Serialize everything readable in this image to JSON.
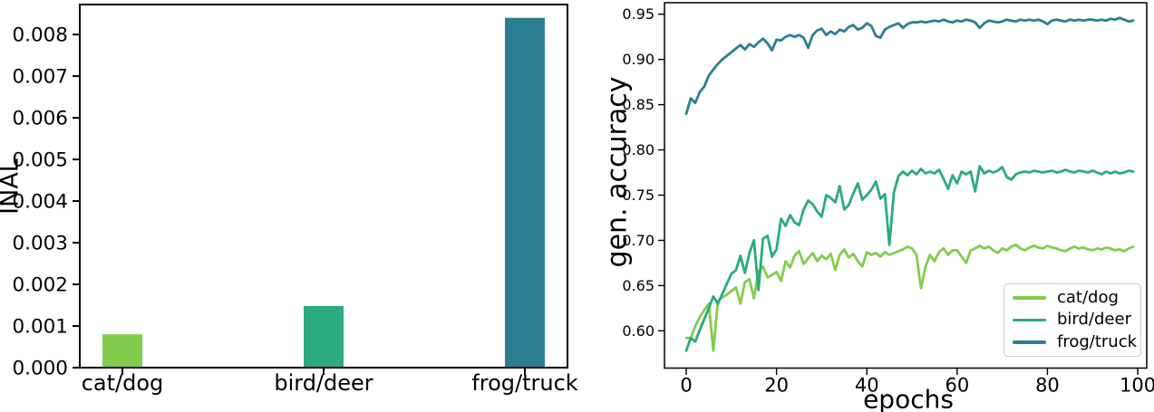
{
  "chart_data": [
    {
      "type": "bar",
      "title": "",
      "xlabel": "",
      "ylabel": "INAL",
      "categories": [
        "cat/dog",
        "bird/deer",
        "frog/truck"
      ],
      "values": [
        0.0008,
        0.00148,
        0.0084
      ],
      "colors": [
        "#82cc4e",
        "#2baa80",
        "#2b7f8e"
      ],
      "yticks": [
        "0.000",
        "0.001",
        "0.002",
        "0.003",
        "0.004",
        "0.005",
        "0.006",
        "0.007",
        "0.008"
      ],
      "ylim": [
        0,
        0.00872
      ],
      "grid": false
    },
    {
      "type": "line",
      "title": "",
      "xlabel": "epochs",
      "ylabel": "gen. accuracy",
      "xticks": [
        "0",
        "20",
        "40",
        "60",
        "80",
        "100"
      ],
      "xtick_values": [
        0,
        20,
        40,
        60,
        80,
        100
      ],
      "yticks": [
        "0.60",
        "0.65",
        "0.70",
        "0.75",
        "0.80",
        "0.85",
        "0.90",
        "0.95"
      ],
      "ytick_values": [
        0.6,
        0.65,
        0.7,
        0.75,
        0.8,
        0.85,
        0.9,
        0.95
      ],
      "xlim": [
        -4.82,
        102.0
      ],
      "ylim": [
        0.5588,
        0.9627
      ],
      "grid": false,
      "legend_position": "lower right",
      "series": [
        {
          "name": "cat/dog",
          "color": "#82cc4e",
          "x_start": 0,
          "x_step": 1,
          "values": [
            0.592,
            0.592,
            0.605,
            0.615,
            0.623,
            0.63,
            0.578,
            0.633,
            0.637,
            0.64,
            0.644,
            0.648,
            0.63,
            0.654,
            0.657,
            0.636,
            0.666,
            0.671,
            0.659,
            0.662,
            0.665,
            0.655,
            0.677,
            0.67,
            0.683,
            0.688,
            0.674,
            0.68,
            0.686,
            0.677,
            0.683,
            0.679,
            0.685,
            0.667,
            0.684,
            0.69,
            0.681,
            0.685,
            0.677,
            0.671,
            0.687,
            0.684,
            0.686,
            0.682,
            0.687,
            0.684,
            0.686,
            0.688,
            0.69,
            0.693,
            0.691,
            0.684,
            0.647,
            0.671,
            0.684,
            0.677,
            0.687,
            0.691,
            0.684,
            0.689,
            0.689,
            0.682,
            0.675,
            0.689,
            0.691,
            0.694,
            0.691,
            0.693,
            0.689,
            0.686,
            0.691,
            0.689,
            0.693,
            0.695,
            0.691,
            0.689,
            0.692,
            0.694,
            0.692,
            0.691,
            0.694,
            0.692,
            0.691,
            0.689,
            0.688,
            0.691,
            0.693,
            0.691,
            0.692,
            0.69,
            0.689,
            0.691,
            0.69,
            0.692,
            0.691,
            0.689,
            0.69,
            0.688,
            0.691,
            0.693
          ]
        },
        {
          "name": "bird/deer",
          "color": "#2baa80",
          "x_start": 0,
          "x_step": 1,
          "values": [
            0.578,
            0.592,
            0.588,
            0.601,
            0.613,
            0.625,
            0.638,
            0.63,
            0.641,
            0.652,
            0.663,
            0.667,
            0.683,
            0.664,
            0.686,
            0.7,
            0.645,
            0.702,
            0.705,
            0.682,
            0.69,
            0.724,
            0.716,
            0.728,
            0.72,
            0.717,
            0.734,
            0.744,
            0.74,
            0.732,
            0.726,
            0.75,
            0.747,
            0.742,
            0.76,
            0.734,
            0.739,
            0.752,
            0.763,
            0.745,
            0.75,
            0.756,
            0.765,
            0.746,
            0.751,
            0.695,
            0.753,
            0.771,
            0.776,
            0.772,
            0.777,
            0.773,
            0.779,
            0.774,
            0.776,
            0.774,
            0.778,
            0.768,
            0.757,
            0.772,
            0.763,
            0.776,
            0.773,
            0.776,
            0.754,
            0.782,
            0.774,
            0.777,
            0.775,
            0.777,
            0.781,
            0.77,
            0.767,
            0.773,
            0.775,
            0.776,
            0.775,
            0.777,
            0.776,
            0.775,
            0.776,
            0.777,
            0.775,
            0.776,
            0.778,
            0.776,
            0.775,
            0.777,
            0.776,
            0.775,
            0.777,
            0.775,
            0.773,
            0.776,
            0.774,
            0.776,
            0.774,
            0.775,
            0.777,
            0.776
          ]
        },
        {
          "name": "frog/truck",
          "color": "#2b7f8e",
          "x_start": 0,
          "x_step": 1,
          "values": [
            0.84,
            0.857,
            0.852,
            0.864,
            0.87,
            0.882,
            0.889,
            0.895,
            0.9,
            0.904,
            0.908,
            0.912,
            0.916,
            0.911,
            0.917,
            0.914,
            0.919,
            0.923,
            0.918,
            0.91,
            0.922,
            0.921,
            0.925,
            0.927,
            0.925,
            0.927,
            0.924,
            0.913,
            0.927,
            0.932,
            0.934,
            0.927,
            0.931,
            0.928,
            0.933,
            0.931,
            0.936,
            0.938,
            0.933,
            0.935,
            0.94,
            0.937,
            0.926,
            0.924,
            0.933,
            0.936,
            0.938,
            0.94,
            0.935,
            0.939,
            0.941,
            0.941,
            0.942,
            0.941,
            0.942,
            0.943,
            0.942,
            0.944,
            0.942,
            0.941,
            0.943,
            0.942,
            0.944,
            0.943,
            0.941,
            0.935,
            0.94,
            0.943,
            0.942,
            0.941,
            0.942,
            0.944,
            0.943,
            0.942,
            0.944,
            0.943,
            0.944,
            0.943,
            0.944,
            0.942,
            0.939,
            0.943,
            0.944,
            0.943,
            0.942,
            0.944,
            0.943,
            0.944,
            0.943,
            0.944,
            0.944,
            0.943,
            0.944,
            0.943,
            0.945,
            0.944,
            0.946,
            0.944,
            0.942,
            0.943
          ]
        }
      ]
    }
  ]
}
